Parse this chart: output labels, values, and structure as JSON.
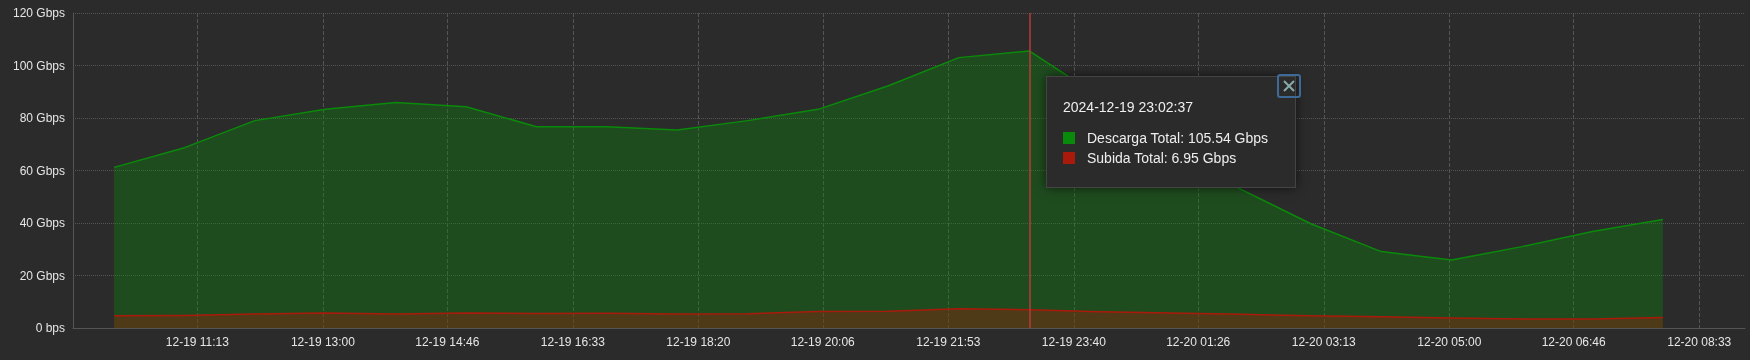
{
  "chart_data": {
    "type": "area",
    "x": [
      "2024-12-19T10:02",
      "2024-12-19T11:02",
      "2024-12-19T12:02",
      "2024-12-19T13:02",
      "2024-12-19T14:02",
      "2024-12-19T15:02",
      "2024-12-19T16:02",
      "2024-12-19T17:02",
      "2024-12-19T18:02",
      "2024-12-19T19:02",
      "2024-12-19T20:02",
      "2024-12-19T21:02",
      "2024-12-19T22:02",
      "2024-12-19T23:02",
      "2024-12-20T00:02",
      "2024-12-20T01:02",
      "2024-12-20T02:02",
      "2024-12-20T03:02",
      "2024-12-20T04:02",
      "2024-12-20T05:02",
      "2024-12-20T06:02",
      "2024-12-20T07:02",
      "2024-12-20T08:02"
    ],
    "series": [
      {
        "color": "#0a8a0a",
        "values": [
          61.2,
          68.7,
          79.0,
          83.3,
          85.9,
          84.3,
          76.7,
          76.7,
          75.4,
          79.0,
          83.3,
          92.3,
          103.0,
          105.54,
          null,
          null,
          52.9,
          39.7,
          29.1,
          25.9,
          31.0,
          36.8,
          41.3
        ]
      },
      {
        "color": "#aa1a0a",
        "values": [
          4.7,
          4.8,
          5.3,
          5.7,
          5.3,
          5.7,
          5.5,
          5.6,
          5.3,
          5.4,
          6.3,
          6.4,
          7.3,
          6.95,
          6.2,
          5.7,
          5.2,
          4.7,
          4.3,
          3.8,
          3.4,
          3.4,
          4.0
        ]
      }
    ],
    "xlim": [
      "2024-12-19T09:27",
      "2024-12-20T09:12"
    ],
    "xticks": [
      {
        "value": "2024-12-19T11:13",
        "label": "12-19 11:13"
      },
      {
        "value": "2024-12-19T13:00",
        "label": "12-19 13:00"
      },
      {
        "value": "2024-12-19T14:46",
        "label": "12-19 14:46"
      },
      {
        "value": "2024-12-19T16:33",
        "label": "12-19 16:33"
      },
      {
        "value": "2024-12-19T18:20",
        "label": "12-19 18:20"
      },
      {
        "value": "2024-12-19T20:06",
        "label": "12-19 20:06"
      },
      {
        "value": "2024-12-19T21:53",
        "label": "12-19 21:53"
      },
      {
        "value": "2024-12-19T23:40",
        "label": "12-19 23:40"
      },
      {
        "value": "2024-12-20T01:26",
        "label": "12-20 01:26"
      },
      {
        "value": "2024-12-20T03:13",
        "label": "12-20 03:13"
      },
      {
        "value": "2024-12-20T05:00",
        "label": "12-20 05:00"
      },
      {
        "value": "2024-12-20T06:46",
        "label": "12-20 06:46"
      },
      {
        "value": "2024-12-20T08:33",
        "label": "12-20 08:33"
      }
    ],
    "ylim": [
      0,
      120
    ],
    "yticks": [
      {
        "value": 0,
        "label": "0 bps"
      },
      {
        "value": 20,
        "label": "20 Gbps"
      },
      {
        "value": 40,
        "label": "40 Gbps"
      },
      {
        "value": 60,
        "label": "60 Gbps"
      },
      {
        "value": 80,
        "label": "80 Gbps"
      },
      {
        "value": 100,
        "label": "100 Gbps"
      },
      {
        "value": 120,
        "label": "120 Gbps"
      }
    ],
    "ref_lines": [
      {
        "axis": "x",
        "value": "2024-12-19T23:02",
        "color": "#b03a3a"
      }
    ],
    "annotations": [
      "2024-12-19 23:02:37",
      "Descarga Total: 105.54 Gbps",
      "Subida Total: 6.95 Gbps"
    ],
    "grid": true,
    "marker": "none",
    "line_style": "solid"
  }
}
